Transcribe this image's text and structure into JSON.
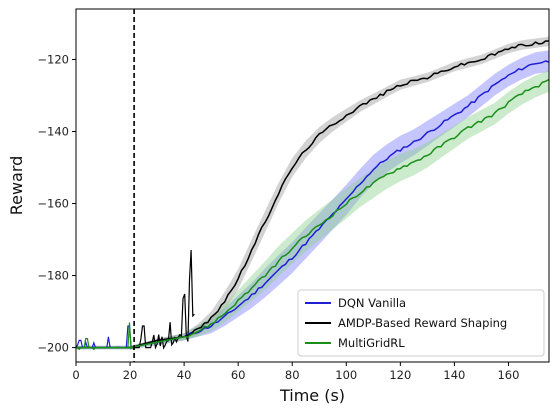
{
  "chart_data": {
    "type": "line",
    "title": "",
    "xlabel": "Time (s)",
    "ylabel": "Reward",
    "xlim": [
      0,
      175
    ],
    "ylim": [
      -204,
      -106
    ],
    "xticks": [
      0,
      20,
      40,
      60,
      80,
      100,
      120,
      140,
      160
    ],
    "yticks": [
      -200,
      -180,
      -160,
      -140,
      -120
    ],
    "ytick_labels": [
      "−200",
      "−180",
      "−160",
      "−140",
      "−120"
    ],
    "grid": false,
    "legend_position": "lower-right",
    "vline": {
      "x": 21.5,
      "style": "dashed",
      "color": "#000000"
    },
    "series": [
      {
        "name": "DQN Vanilla",
        "color": "#1f1fd6",
        "band_color": "#7f7fff",
        "x": [
          0,
          10,
          20,
          30,
          40,
          45,
          50,
          55,
          60,
          65,
          70,
          75,
          80,
          85,
          90,
          95,
          100,
          105,
          110,
          115,
          120,
          125,
          130,
          135,
          140,
          145,
          150,
          155,
          160,
          165,
          170,
          175
        ],
        "y": [
          -200,
          -200,
          -200,
          -198.5,
          -197,
          -195.5,
          -194,
          -191.5,
          -188.5,
          -185.5,
          -182,
          -178.5,
          -175,
          -171,
          -167,
          -163,
          -159,
          -154.5,
          -150.5,
          -147.5,
          -145,
          -143,
          -140.5,
          -138,
          -135.5,
          -133,
          -130,
          -127,
          -124.5,
          -122.5,
          -121,
          -120.5
        ],
        "band": [
          0.5,
          0.5,
          0.5,
          0.8,
          1,
          1.5,
          2,
          2.5,
          3,
          3.5,
          4,
          4.2,
          4.3,
          4.3,
          4.3,
          4.2,
          4.2,
          4,
          4,
          3.9,
          3.8,
          3.6,
          3.5,
          3.3,
          3.2,
          3,
          3,
          3,
          3,
          3,
          3,
          3
        ]
      },
      {
        "name": "AMDP-Based Reward Shaping",
        "color": "#000000",
        "band_color": "#9e9e9e",
        "x": [
          0,
          10,
          20,
          30,
          40,
          45,
          50,
          55,
          60,
          65,
          70,
          75,
          80,
          85,
          90,
          95,
          100,
          105,
          110,
          115,
          120,
          125,
          130,
          135,
          140,
          145,
          150,
          155,
          160,
          165,
          170,
          175
        ],
        "y": [
          -200,
          -200,
          -200,
          -198,
          -197,
          -195,
          -192,
          -187,
          -181,
          -173,
          -165,
          -157,
          -150,
          -145,
          -141,
          -138,
          -135.5,
          -133,
          -131,
          -129,
          -127,
          -126,
          -125,
          -123.5,
          -122,
          -121,
          -120,
          -118.5,
          -117,
          -116,
          -115.5,
          -115
        ],
        "band": [
          0.3,
          0.3,
          0.3,
          0.5,
          1,
          1.5,
          2,
          2.5,
          2.8,
          3,
          3,
          2.8,
          2.6,
          2.4,
          2.2,
          2,
          1.8,
          1.6,
          1.5,
          1.4,
          1.4,
          1.3,
          1.3,
          1.3,
          1.3,
          1.3,
          1.3,
          1.3,
          1.3,
          1.3,
          1.3,
          1.3
        ]
      },
      {
        "name": "MultiGridRL",
        "color": "#1a8f1a",
        "band_color": "#8fd08f",
        "x": [
          0,
          10,
          20,
          30,
          40,
          45,
          50,
          55,
          60,
          65,
          70,
          75,
          80,
          85,
          90,
          95,
          100,
          105,
          110,
          115,
          120,
          125,
          130,
          135,
          140,
          145,
          150,
          155,
          160,
          165,
          170,
          175
        ],
        "y": [
          -200,
          -200,
          -200,
          -198.5,
          -197,
          -195.5,
          -193.5,
          -190.5,
          -187,
          -183.5,
          -180,
          -176,
          -172.5,
          -169,
          -166,
          -163,
          -160,
          -157,
          -154.5,
          -152,
          -150,
          -148.5,
          -146.5,
          -144,
          -141.5,
          -139,
          -137,
          -135,
          -132,
          -129.5,
          -127.5,
          -126
        ]
      }
    ]
  }
}
